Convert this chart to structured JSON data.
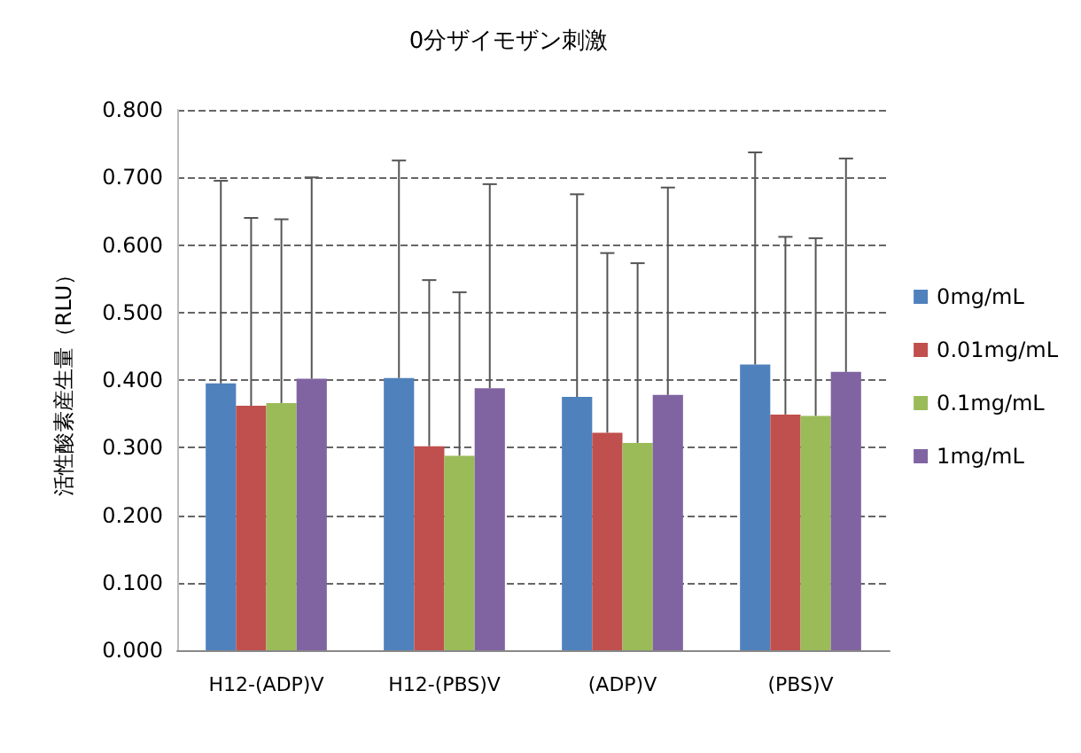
{
  "chart_data": {
    "type": "bar",
    "title": "0分ザイモザン刺激",
    "ylabel": "活性酸素産生量（RLU）",
    "categories": [
      "H12-(ADP)V",
      "H12-(PBS)V",
      "(ADP)V",
      "(PBS)V"
    ],
    "series": [
      {
        "name": "0mg/mL",
        "color": "#4f81bd",
        "values": [
          0.395,
          0.403,
          0.375,
          0.423
        ],
        "errors": [
          [
            0.395,
            0.695
          ],
          [
            0.403,
            0.725
          ],
          [
            0.375,
            0.675
          ],
          [
            0.423,
            0.737
          ]
        ]
      },
      {
        "name": "0.01mg/mL",
        "color": "#c0504d",
        "values": [
          0.362,
          0.302,
          0.322,
          0.349
        ],
        "errors": [
          [
            0.362,
            0.64
          ],
          [
            0.302,
            0.548
          ],
          [
            0.322,
            0.588
          ],
          [
            0.349,
            0.612
          ]
        ]
      },
      {
        "name": "0.1mg/mL",
        "color": "#9bbb59",
        "values": [
          0.366,
          0.288,
          0.307,
          0.347
        ],
        "errors": [
          [
            0.366,
            0.638
          ],
          [
            0.288,
            0.53
          ],
          [
            0.307,
            0.573
          ],
          [
            0.347,
            0.61
          ]
        ]
      },
      {
        "name": "1mg/mL",
        "color": "#8064a2",
        "values": [
          0.402,
          0.388,
          0.378,
          0.412
        ],
        "errors": [
          [
            0.402,
            0.7
          ],
          [
            0.388,
            0.69
          ],
          [
            0.378,
            0.685
          ],
          [
            0.412,
            0.728
          ]
        ]
      }
    ],
    "ylim": [
      0,
      0.8
    ],
    "yticks": [
      {
        "value": 0,
        "label": "0.000"
      },
      {
        "value": 0.1,
        "label": "0.100"
      },
      {
        "value": 0.2,
        "label": "0.200"
      },
      {
        "value": 0.3,
        "label": "0.300"
      },
      {
        "value": 0.4,
        "label": "0.400"
      },
      {
        "value": 0.5,
        "label": "0.500"
      },
      {
        "value": 0.6,
        "label": "0.600"
      },
      {
        "value": 0.7,
        "label": "0.700"
      },
      {
        "value": 0.8,
        "label": "0.800"
      }
    ],
    "grid": "y",
    "legend": "right"
  }
}
